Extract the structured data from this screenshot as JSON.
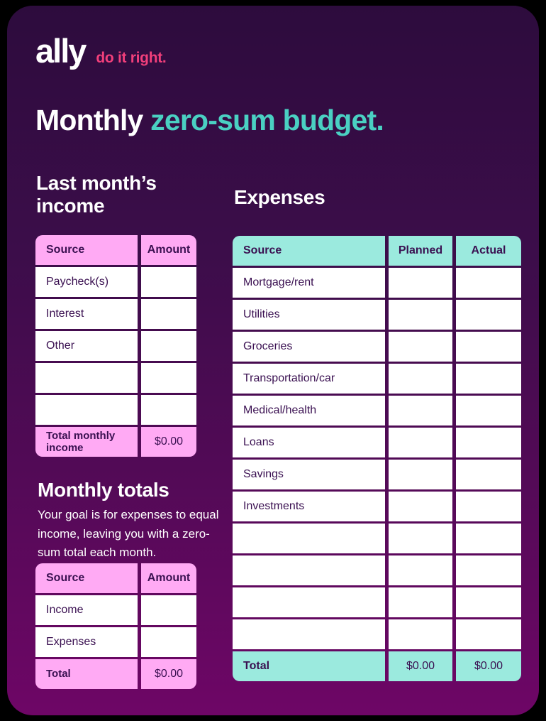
{
  "brand": {
    "logo": "ally",
    "tagline": "do it right."
  },
  "title": {
    "part1": "Monthly ",
    "part2": "zero-sum budget."
  },
  "colors": {
    "background_top": "#2d0c3d",
    "background_bottom": "#6e0666",
    "pink_cell": "#ffaaf4",
    "teal_cell": "#9beade",
    "title_teal": "#4ad0c2",
    "tagline_pink": "#f23f7b",
    "cell_text": "#3a1051"
  },
  "income": {
    "heading": "Last month’s income",
    "table": {
      "headers": [
        "Source",
        "Amount"
      ],
      "rows": [
        "Paycheck(s)",
        "Interest",
        "Other",
        "",
        ""
      ],
      "total": {
        "label": "Total monthly income",
        "amount": "$0.00"
      }
    }
  },
  "totals": {
    "heading": "Monthly totals",
    "description": "Your goal is for expenses to equal income, leaving you with a zero-sum total each month.",
    "table": {
      "headers": [
        "Source",
        "Amount"
      ],
      "rows": [
        "Income",
        "Expenses"
      ],
      "total": {
        "label": "Total",
        "amount": "$0.00"
      }
    }
  },
  "expenses": {
    "heading": "Expenses",
    "table": {
      "headers": [
        "Source",
        "Planned",
        "Actual"
      ],
      "rows": [
        "Mortgage/rent",
        "Utilities",
        "Groceries",
        "Transportation/car",
        "Medical/health",
        "Loans",
        "Savings",
        "Investments",
        "",
        "",
        "",
        ""
      ],
      "total": {
        "label": "Total",
        "planned": "$0.00",
        "actual": "$0.00"
      }
    }
  }
}
